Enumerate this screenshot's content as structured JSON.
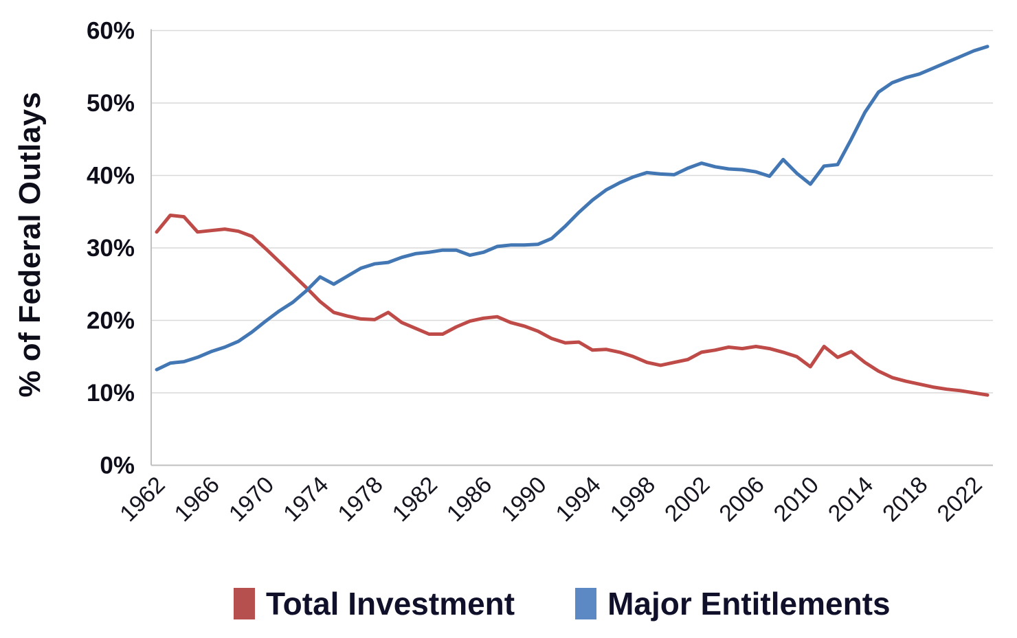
{
  "chart_data": {
    "type": "line",
    "title": "",
    "xlabel": "",
    "ylabel": "% of Federal Outlays",
    "ylim": [
      0,
      60
    ],
    "ytick_step": 10,
    "ytick_labels": [
      "0%",
      "10%",
      "20%",
      "30%",
      "40%",
      "50%",
      "60%"
    ],
    "xtick_labels": [
      "1962",
      "1966",
      "1970",
      "1974",
      "1978",
      "1982",
      "1986",
      "1990",
      "1994",
      "1998",
      "2002",
      "2006",
      "2010",
      "2014",
      "2018",
      "2022"
    ],
    "grid": true,
    "legend_position": "bottom",
    "x": [
      1962,
      1963,
      1964,
      1965,
      1966,
      1967,
      1968,
      1969,
      1970,
      1971,
      1972,
      1973,
      1974,
      1975,
      1976,
      1977,
      1978,
      1979,
      1980,
      1981,
      1982,
      1983,
      1984,
      1985,
      1986,
      1987,
      1988,
      1989,
      1990,
      1991,
      1992,
      1993,
      1994,
      1995,
      1996,
      1997,
      1998,
      1999,
      2000,
      2001,
      2002,
      2003,
      2004,
      2005,
      2006,
      2007,
      2008,
      2009,
      2010,
      2011,
      2012,
      2013,
      2014,
      2015,
      2016,
      2017,
      2018,
      2019,
      2020,
      2021,
      2022,
      2023
    ],
    "series": [
      {
        "name": "Total Investment",
        "color": "#BE4B48",
        "swatch_color": "#B6504E",
        "values": [
          32.2,
          34.5,
          34.3,
          32.2,
          32.4,
          32.6,
          32.3,
          31.6,
          29.9,
          28.1,
          26.3,
          24.5,
          22.6,
          21.1,
          20.6,
          20.2,
          20.1,
          21.1,
          19.7,
          18.9,
          18.1,
          18.1,
          19.1,
          19.9,
          20.3,
          20.5,
          19.7,
          19.2,
          18.5,
          17.5,
          16.9,
          17.0,
          15.9,
          16.0,
          15.6,
          15.0,
          14.2,
          13.8,
          14.2,
          14.6,
          15.6,
          15.9,
          16.3,
          16.1,
          16.4,
          16.1,
          15.6,
          15.0,
          13.6,
          16.4,
          14.9,
          15.7,
          14.2,
          13.0,
          12.1,
          11.6,
          11.2,
          10.8,
          10.5,
          10.3,
          10.0,
          9.7
        ]
      },
      {
        "name": "Major Entitlements",
        "color": "#4277B4",
        "swatch_color": "#5C88C3",
        "values": [
          13.2,
          14.1,
          14.3,
          14.9,
          15.7,
          16.3,
          17.1,
          18.4,
          19.9,
          21.3,
          22.5,
          24.1,
          26.0,
          25.0,
          26.1,
          27.2,
          27.8,
          28.0,
          28.7,
          29.2,
          29.4,
          29.7,
          29.7,
          29.0,
          29.4,
          30.2,
          30.4,
          30.4,
          30.5,
          31.3,
          33.0,
          34.9,
          36.6,
          38.0,
          39.0,
          39.8,
          40.4,
          40.2,
          40.1,
          41.0,
          41.7,
          41.2,
          40.9,
          40.8,
          40.5,
          39.9,
          42.2,
          40.3,
          38.8,
          41.3,
          41.5,
          45.0,
          48.7,
          51.5,
          52.8,
          53.5,
          54.0,
          54.8,
          55.6,
          56.4,
          57.2,
          57.8
        ]
      }
    ],
    "colors": {
      "gridline": "#d9d9d9",
      "axis_line": "#bfbfbf",
      "tick_text": "#15151f"
    }
  }
}
